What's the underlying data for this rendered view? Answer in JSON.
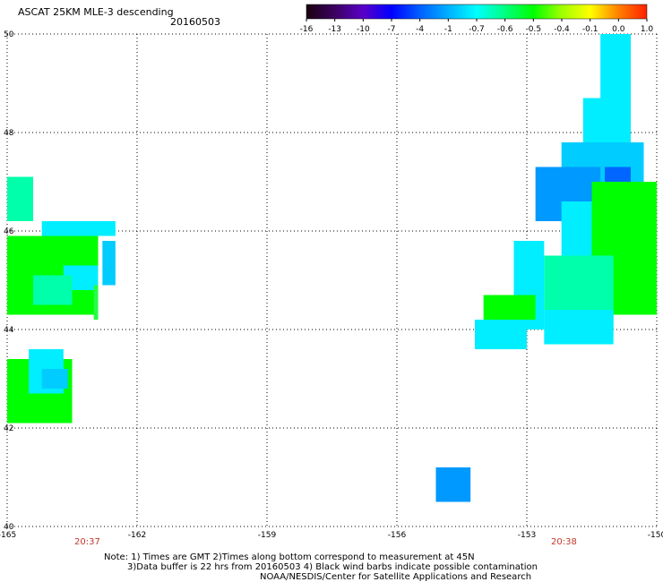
{
  "header": {
    "title": "ASCAT 25KM MLE-3 descending",
    "date": "20160503"
  },
  "colorbar": {
    "labels": [
      "-16",
      "-13",
      "-10",
      "-7",
      "-4",
      "-1",
      "-0.7",
      "-0.6",
      "-0.5",
      "-0.4",
      "-0.1",
      "0.0",
      "1.0"
    ],
    "colors": [
      "#1a0010",
      "#3b0060",
      "#5a00c8",
      "#0000ff",
      "#0060ff",
      "#00b0ff",
      "#00ffff",
      "#00ff80",
      "#00ff00",
      "#a0ff00",
      "#ffff00",
      "#ff8000",
      "#ff2000"
    ]
  },
  "axes": {
    "lon_labels": [
      "-165",
      "-162",
      "-159",
      "-156",
      "-153",
      "-150"
    ],
    "lat_labels": [
      "50",
      "48",
      "46",
      "44",
      "42",
      "40"
    ],
    "lon_range": [
      -165,
      -150
    ],
    "lat_range": [
      40,
      50
    ]
  },
  "times": [
    "20:37",
    "20:38"
  ],
  "notes": {
    "line1": "Note: 1) Times are GMT 2)Times along bottom correspond to measurement at 45N",
    "line2": "3)Data buffer is 22 hrs from 20160503 4) Black wind barbs indicate possible contamination",
    "line3": "NOAA/NESDIS/Center for Satellite Applications and Research"
  },
  "data_colors": {
    "green": "#00ff00",
    "green2": "#22ff44",
    "aquagreen": "#00ffaa",
    "cyan": "#00eeff",
    "lightblue": "#00ccff",
    "blue": "#0099ff",
    "deepblue": "#0066ff"
  }
}
